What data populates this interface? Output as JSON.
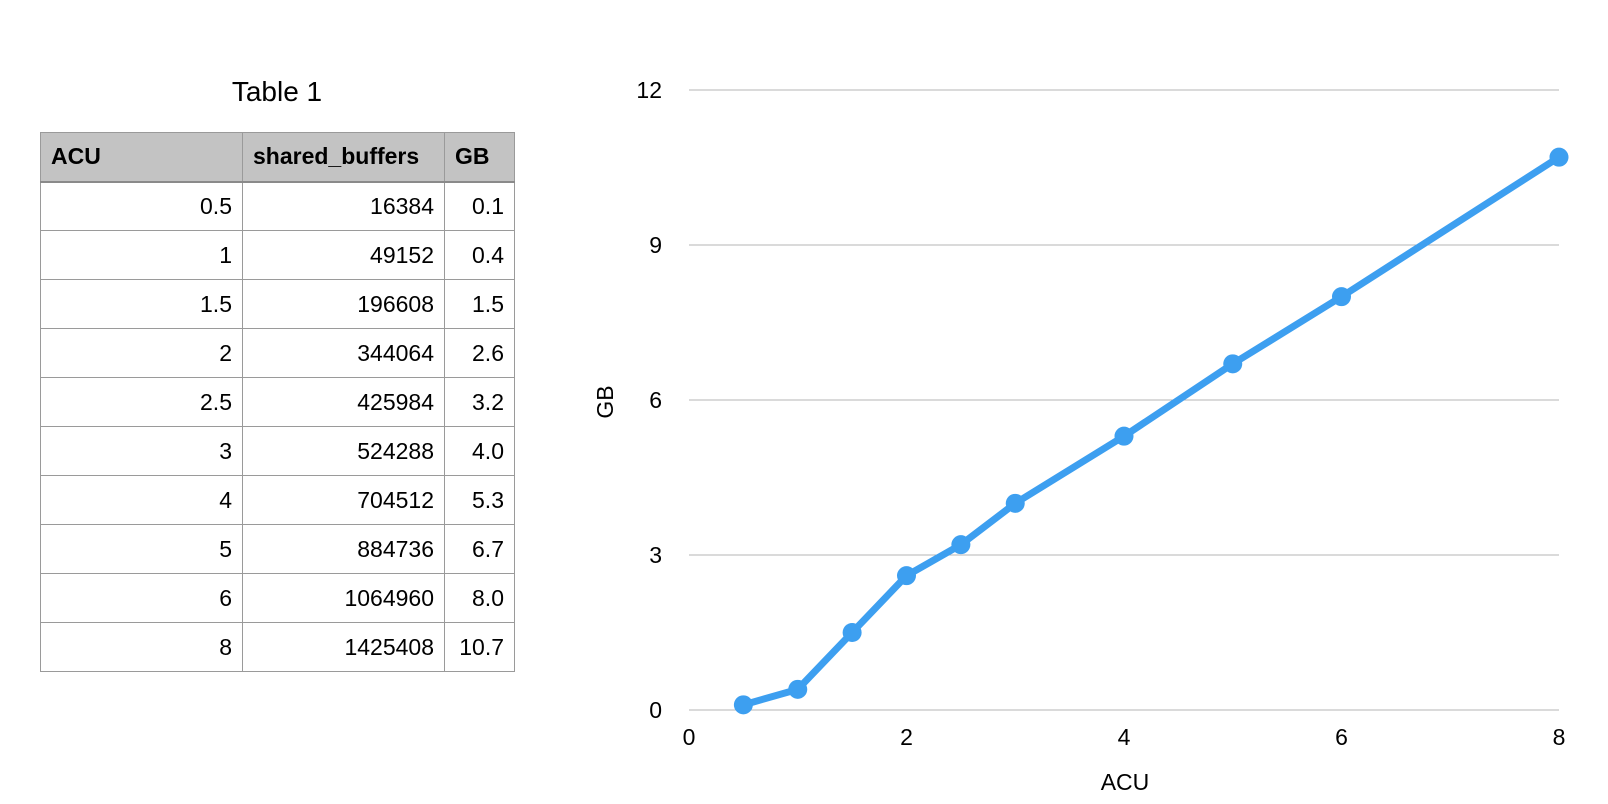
{
  "table": {
    "title": "Table 1",
    "headers": [
      "ACU",
      "shared_buffers",
      "GB"
    ],
    "rows": [
      [
        "0.5",
        "16384",
        "0.1"
      ],
      [
        "1",
        "49152",
        "0.4"
      ],
      [
        "1.5",
        "196608",
        "1.5"
      ],
      [
        "2",
        "344064",
        "2.6"
      ],
      [
        "2.5",
        "425984",
        "3.2"
      ],
      [
        "3",
        "524288",
        "4.0"
      ],
      [
        "4",
        "704512",
        "5.3"
      ],
      [
        "5",
        "884736",
        "6.7"
      ],
      [
        "6",
        "1064960",
        "8.0"
      ],
      [
        "8",
        "1425408",
        "10.7"
      ]
    ]
  },
  "chart_data": {
    "type": "line",
    "title": "",
    "xlabel": "ACU",
    "ylabel": "GB",
    "xlim": [
      0,
      8
    ],
    "ylim": [
      0,
      12
    ],
    "xticks": [
      0,
      2,
      4,
      6,
      8
    ],
    "yticks": [
      0,
      3,
      6,
      9,
      12
    ],
    "grid": "horizontal",
    "series": [
      {
        "x": [
          0.5,
          1,
          1.5,
          2,
          2.5,
          3,
          4,
          5,
          6,
          8
        ],
        "y": [
          0.1,
          0.4,
          1.5,
          2.6,
          3.2,
          4.0,
          5.3,
          6.7,
          8.0,
          10.7
        ],
        "color": "#3d9ff0"
      }
    ]
  }
}
